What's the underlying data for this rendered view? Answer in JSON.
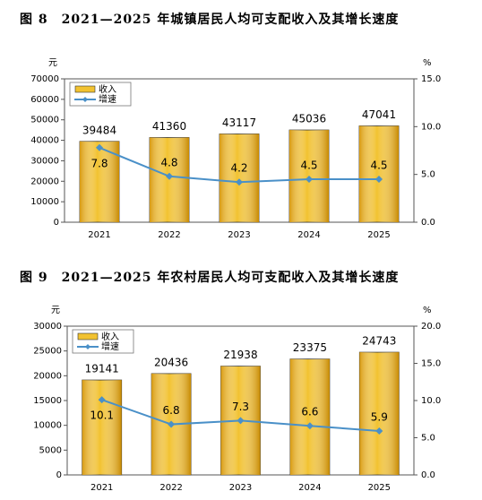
{
  "chart_data": [
    {
      "type": "bar-line",
      "title": "图 8　2021—2025 年城镇居民人均可支配收入及其增长速度",
      "ylabel": "元",
      "y2label": "%",
      "categories": [
        "2021",
        "2022",
        "2023",
        "2024",
        "2025"
      ],
      "series": [
        {
          "name": "收入",
          "color": "#f2c230",
          "values": [
            39484,
            41360,
            43117,
            45036,
            47041
          ]
        },
        {
          "name": "增速",
          "color": "#4a90c8",
          "axis": "y2",
          "values": [
            7.8,
            4.8,
            4.2,
            4.5,
            4.5
          ]
        }
      ],
      "ylim": [
        0,
        70000
      ],
      "yticks": [
        0,
        10000,
        20000,
        30000,
        40000,
        50000,
        60000,
        70000
      ],
      "y2lim": [
        0,
        15
      ],
      "y2ticks": [
        {
          "value": 0,
          "label": "0.0"
        },
        {
          "value": 5,
          "label": "5.0"
        },
        {
          "value": 10,
          "label": "10.0"
        },
        {
          "value": 15,
          "label": "15.0"
        }
      ],
      "legend": "upper left"
    },
    {
      "type": "bar-line",
      "title": "图 9　2021—2025 年农村居民人均可支配收入及其增长速度",
      "ylabel": "元",
      "y2label": "%",
      "categories": [
        "2021",
        "2022",
        "2023",
        "2024",
        "2025"
      ],
      "series": [
        {
          "name": "收入",
          "color": "#f2c230",
          "values": [
            19141,
            20436,
            21938,
            23375,
            24743
          ]
        },
        {
          "name": "增速",
          "color": "#4a90c8",
          "axis": "y2",
          "values": [
            10.1,
            6.8,
            7.3,
            6.6,
            5.9
          ]
        }
      ],
      "ylim": [
        0,
        30000
      ],
      "yticks": [
        0,
        5000,
        10000,
        15000,
        20000,
        25000,
        30000
      ],
      "y2lim": [
        0,
        20
      ],
      "y2ticks": [
        {
          "value": 0,
          "label": "0.0"
        },
        {
          "value": 5,
          "label": "5.0"
        },
        {
          "value": 10,
          "label": "10.0"
        },
        {
          "value": 15,
          "label": "15.0"
        },
        {
          "value": 20,
          "label": "20.0"
        }
      ],
      "legend": "upper left"
    }
  ]
}
